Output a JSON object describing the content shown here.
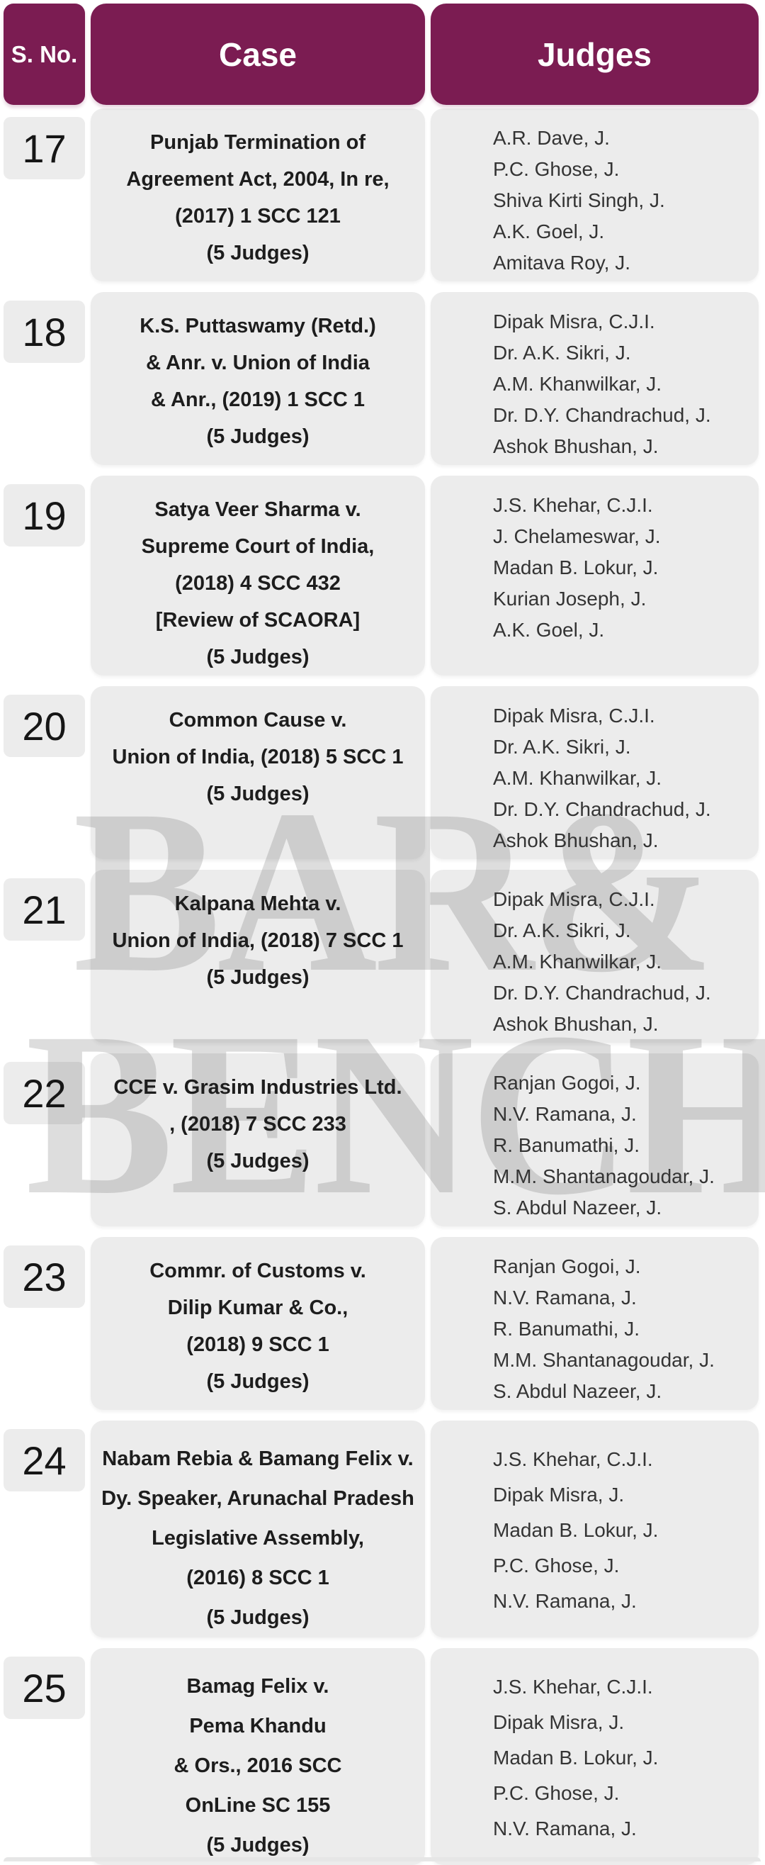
{
  "header": {
    "s_no": "S. No.",
    "case": "Case",
    "judges": "Judges"
  },
  "watermark": {
    "line1": "BAR&",
    "line2": "BENCH"
  },
  "colors": {
    "header_bg": "#7b1c52",
    "header_text": "#ffffff",
    "cell_bg": "#ececec",
    "case_text": "#1d1d1d",
    "judges_text": "#343434",
    "watermark_grey": "#c9c9c9",
    "page_bg": "#ffffff"
  },
  "rows": [
    {
      "s_no": "17",
      "case_lines": [
        "Punjab Termination of",
        "Agreement Act, 2004, In re,",
        "(2017) 1 SCC 121",
        "(5 Judges)"
      ],
      "judges": [
        "A.R. Dave, J.",
        "P.C. Ghose, J.",
        "Shiva Kirti Singh, J.",
        "A.K. Goel, J.",
        "Amitava Roy, J."
      ]
    },
    {
      "s_no": "18",
      "case_lines": [
        "K.S. Puttaswamy (Retd.)",
        "& Anr. v. Union of India",
        "& Anr., (2019) 1 SCC 1",
        "(5 Judges)"
      ],
      "judges": [
        "Dipak Misra, C.J.I.",
        "Dr. A.K. Sikri, J.",
        "A.M. Khanwilkar, J.",
        "Dr. D.Y. Chandrachud, J.",
        "Ashok Bhushan, J."
      ]
    },
    {
      "s_no": "19",
      "case_lines": [
        "Satya Veer Sharma v.",
        "Supreme Court of India,",
        "(2018) 4 SCC 432",
        "[Review of SCAORA]",
        "(5 Judges)"
      ],
      "judges": [
        "J.S. Khehar, C.J.I.",
        "J. Chelameswar, J.",
        "Madan B. Lokur, J.",
        "Kurian Joseph, J.",
        "A.K. Goel, J."
      ]
    },
    {
      "s_no": "20",
      "case_lines": [
        "Common Cause v.",
        "Union of India, (2018) 5 SCC 1",
        "(5 Judges)"
      ],
      "judges": [
        "Dipak Misra, C.J.I.",
        "Dr. A.K. Sikri, J.",
        "A.M. Khanwilkar, J.",
        "Dr. D.Y. Chandrachud, J.",
        "Ashok Bhushan, J."
      ]
    },
    {
      "s_no": "21",
      "case_lines": [
        "Kalpana Mehta v.",
        "Union of India, (2018) 7 SCC 1",
        "(5 Judges)"
      ],
      "judges": [
        "Dipak Misra, C.J.I.",
        "Dr. A.K. Sikri, J.",
        "A.M. Khanwilkar, J.",
        "Dr. D.Y. Chandrachud, J.",
        "Ashok Bhushan, J."
      ]
    },
    {
      "s_no": "22",
      "case_lines": [
        "CCE v. Grasim Industries Ltd.",
        ", (2018) 7 SCC 233",
        "(5 Judges)"
      ],
      "judges": [
        "Ranjan Gogoi, J.",
        "N.V. Ramana, J.",
        "R. Banumathi, J.",
        "M.M. Shantanagoudar, J.",
        "S. Abdul Nazeer, J."
      ]
    },
    {
      "s_no": "23",
      "case_lines": [
        "Commr. of Customs v.",
        "Dilip Kumar & Co.,",
        "(2018) 9 SCC 1",
        "(5 Judges)"
      ],
      "judges": [
        "Ranjan Gogoi, J.",
        "N.V. Ramana, J.",
        "R. Banumathi, J.",
        "M.M. Shantanagoudar, J.",
        "S. Abdul Nazeer, J."
      ]
    },
    {
      "s_no": "24",
      "case_lines": [
        "Nabam Rebia & Bamang Felix v.",
        "Dy. Speaker, Arunachal Pradesh",
        "Legislative Assembly,",
        "(2016) 8 SCC 1",
        "(5 Judges)"
      ],
      "judges": [
        "J.S. Khehar, C.J.I.",
        "Dipak Misra, J.",
        "Madan B. Lokur, J.",
        "P.C. Ghose, J.",
        "N.V. Ramana, J."
      ]
    },
    {
      "s_no": "25",
      "case_lines": [
        "Bamag Felix v.",
        "Pema Khandu",
        "& Ors., 2016 SCC",
        "OnLine SC 155",
        "(5 Judges)"
      ],
      "judges": [
        "J.S. Khehar, C.J.I.",
        "Dipak Misra, J.",
        "Madan B. Lokur, J.",
        "P.C. Ghose, J.",
        "N.V. Ramana, J."
      ]
    }
  ]
}
